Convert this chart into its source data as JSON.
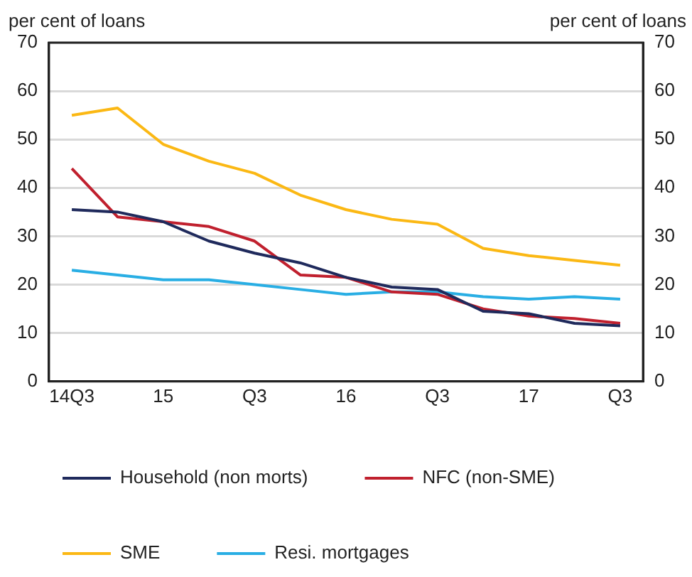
{
  "chart_data": {
    "type": "line",
    "ylabel": "per cent of loans",
    "y2label": "per cent of loans",
    "categories": [
      "14Q3",
      null,
      "15",
      null,
      "Q3",
      null,
      "16",
      null,
      "Q3",
      null,
      "17",
      null,
      "Q3"
    ],
    "series": [
      {
        "name": "Household (non morts)",
        "color": "#1f2a5c",
        "values": [
          35.5,
          35,
          33,
          29,
          26.5,
          24.5,
          21.5,
          19.5,
          19,
          14.5,
          14,
          12,
          11.5
        ]
      },
      {
        "name": "NFC (non-SME)",
        "color": "#c0202e",
        "values": [
          44,
          34,
          33,
          32,
          29,
          22,
          21.5,
          18.5,
          18,
          15,
          13.5,
          13,
          12
        ]
      },
      {
        "name": "SME",
        "color": "#fbb814",
        "values": [
          55,
          56.5,
          49,
          45.5,
          43,
          38.5,
          35.5,
          33.5,
          32.5,
          27.5,
          26,
          25,
          24
        ]
      },
      {
        "name": "Resi. mortgages",
        "color": "#29aee4",
        "values": [
          23,
          22,
          21,
          21,
          20,
          19,
          18,
          18.5,
          18.5,
          17.5,
          17,
          17.5,
          17
        ]
      }
    ],
    "ylim": [
      0,
      70
    ],
    "yticks": [
      0,
      10,
      20,
      30,
      40,
      50,
      60,
      70
    ],
    "y2lim": [
      0,
      70
    ],
    "y2ticks": [
      0,
      10,
      20,
      30,
      40,
      50,
      60,
      70
    ],
    "grid": "y",
    "legend": "bottom",
    "marker": "none",
    "line_style": "solid"
  }
}
